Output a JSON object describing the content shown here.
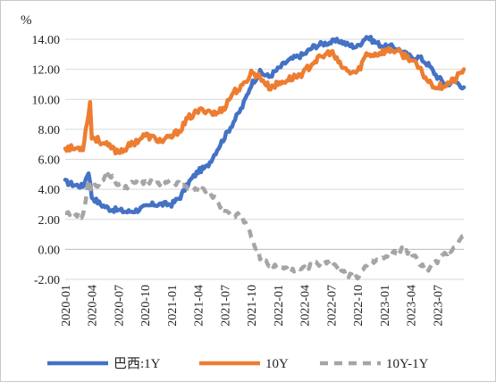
{
  "chart_data": {
    "type": "line",
    "unit_label": "%",
    "ylim": [
      -2,
      14
    ],
    "y_ticks": [
      "14.00",
      "12.00",
      "10.00",
      "8.00",
      "6.00",
      "4.00",
      "2.00",
      "0.00",
      "-2.00"
    ],
    "x_ticks": [
      "2020-01",
      "2020-04",
      "2020-07",
      "2020-10",
      "2021-01",
      "2021-04",
      "2021-07",
      "2021-10",
      "2022-01",
      "2022-04",
      "2022-07",
      "2022-10",
      "2023-01",
      "2023-04",
      "2023-07"
    ],
    "grid": "horizontal",
    "legend_position": "bottom",
    "x_range": [
      "2020-01",
      "2023-10"
    ],
    "series": [
      {
        "name": "巴西:1Y",
        "color": "#4472C4",
        "style": "solid",
        "points": [
          [
            "2020-01",
            4.5
          ],
          [
            "2020-02",
            4.3
          ],
          [
            "2020-03",
            4.2
          ],
          [
            "2020-03-20",
            5.2
          ],
          [
            "2020-04",
            3.5
          ],
          [
            "2020-05",
            3.0
          ],
          [
            "2020-06",
            2.7
          ],
          [
            "2020-07",
            2.6
          ],
          [
            "2020-08",
            2.5
          ],
          [
            "2020-09",
            2.6
          ],
          [
            "2020-10",
            2.8
          ],
          [
            "2020-11",
            3.0
          ],
          [
            "2020-12",
            3.0
          ],
          [
            "2021-01",
            3.0
          ],
          [
            "2021-02",
            3.5
          ],
          [
            "2021-03",
            4.5
          ],
          [
            "2021-04",
            5.2
          ],
          [
            "2021-05",
            5.5
          ],
          [
            "2021-06",
            6.5
          ],
          [
            "2021-07",
            7.5
          ],
          [
            "2021-08",
            8.5
          ],
          [
            "2021-09",
            9.5
          ],
          [
            "2021-10",
            11.0
          ],
          [
            "2021-11",
            11.8
          ],
          [
            "2021-12",
            11.5
          ],
          [
            "2022-01",
            12.0
          ],
          [
            "2022-02",
            12.5
          ],
          [
            "2022-03",
            12.8
          ],
          [
            "2022-04",
            13.0
          ],
          [
            "2022-05",
            13.5
          ],
          [
            "2022-06",
            13.7
          ],
          [
            "2022-07",
            13.8
          ],
          [
            "2022-08",
            13.9
          ],
          [
            "2022-09",
            13.6
          ],
          [
            "2022-10",
            13.5
          ],
          [
            "2022-11",
            14.2
          ],
          [
            "2022-12",
            13.8
          ],
          [
            "2023-01",
            13.5
          ],
          [
            "2023-02",
            13.5
          ],
          [
            "2023-03",
            13.2
          ],
          [
            "2023-04",
            12.8
          ],
          [
            "2023-05",
            12.8
          ],
          [
            "2023-06",
            12.3
          ],
          [
            "2023-07",
            11.5
          ],
          [
            "2023-08",
            11.0
          ],
          [
            "2023-09",
            11.2
          ],
          [
            "2023-10",
            10.8
          ]
        ]
      },
      {
        "name": "10Y",
        "color": "#ED7D31",
        "style": "solid",
        "points": [
          [
            "2020-01",
            6.8
          ],
          [
            "2020-02",
            6.7
          ],
          [
            "2020-03",
            6.8
          ],
          [
            "2020-03-15",
            8.5
          ],
          [
            "2020-03-25",
            9.8
          ],
          [
            "2020-04",
            7.5
          ],
          [
            "2020-05",
            7.2
          ],
          [
            "2020-06",
            6.8
          ],
          [
            "2020-07",
            6.5
          ],
          [
            "2020-08",
            6.8
          ],
          [
            "2020-09",
            7.2
          ],
          [
            "2020-10",
            7.6
          ],
          [
            "2020-11",
            7.4
          ],
          [
            "2020-12",
            7.2
          ],
          [
            "2021-01",
            7.5
          ],
          [
            "2021-02",
            8.0
          ],
          [
            "2021-03",
            8.8
          ],
          [
            "2021-04",
            9.2
          ],
          [
            "2021-05",
            9.3
          ],
          [
            "2021-06",
            9.0
          ],
          [
            "2021-07",
            9.5
          ],
          [
            "2021-08",
            10.5
          ],
          [
            "2021-09",
            10.8
          ],
          [
            "2021-10",
            11.8
          ],
          [
            "2021-11",
            11.5
          ],
          [
            "2021-12",
            10.8
          ],
          [
            "2022-01",
            11.0
          ],
          [
            "2022-02",
            11.3
          ],
          [
            "2022-03",
            11.5
          ],
          [
            "2022-04",
            11.8
          ],
          [
            "2022-05",
            12.5
          ],
          [
            "2022-06",
            12.8
          ],
          [
            "2022-07",
            13.2
          ],
          [
            "2022-08",
            12.3
          ],
          [
            "2022-09",
            11.8
          ],
          [
            "2022-10",
            11.8
          ],
          [
            "2022-11",
            13.0
          ],
          [
            "2022-12",
            13.0
          ],
          [
            "2023-01",
            13.2
          ],
          [
            "2023-02",
            13.3
          ],
          [
            "2023-03",
            13.0
          ],
          [
            "2023-04",
            12.7
          ],
          [
            "2023-05",
            12.0
          ],
          [
            "2023-06",
            11.2
          ],
          [
            "2023-07",
            10.8
          ],
          [
            "2023-08",
            11.0
          ],
          [
            "2023-09",
            11.3
          ],
          [
            "2023-10",
            12.0
          ]
        ]
      },
      {
        "name": "10Y-1Y",
        "color": "#A5A5A5",
        "style": "dashed",
        "points": [
          [
            "2020-01",
            2.3
          ],
          [
            "2020-02",
            2.4
          ],
          [
            "2020-03",
            2.2
          ],
          [
            "2020-03-20",
            4.5
          ],
          [
            "2020-04",
            4.0
          ],
          [
            "2020-05",
            4.5
          ],
          [
            "2020-06",
            5.0
          ],
          [
            "2020-07",
            4.3
          ],
          [
            "2020-08",
            4.2
          ],
          [
            "2020-09",
            4.5
          ],
          [
            "2020-10",
            4.5
          ],
          [
            "2020-11",
            4.4
          ],
          [
            "2020-12",
            4.3
          ],
          [
            "2021-01",
            4.5
          ],
          [
            "2021-02",
            4.3
          ],
          [
            "2021-03",
            4.0
          ],
          [
            "2021-04",
            3.9
          ],
          [
            "2021-05",
            4.0
          ],
          [
            "2021-06",
            3.3
          ],
          [
            "2021-07",
            2.5
          ],
          [
            "2021-08",
            2.3
          ],
          [
            "2021-09",
            2.2
          ],
          [
            "2021-10",
            0.8
          ],
          [
            "2021-11",
            -0.5
          ],
          [
            "2021-12",
            -1.0
          ],
          [
            "2022-01",
            -1.2
          ],
          [
            "2022-02",
            -1.3
          ],
          [
            "2022-03",
            -1.5
          ],
          [
            "2022-04",
            -1.3
          ],
          [
            "2022-05",
            -1.0
          ],
          [
            "2022-06",
            -0.9
          ],
          [
            "2022-07",
            -0.7
          ],
          [
            "2022-08",
            -1.3
          ],
          [
            "2022-09",
            -1.7
          ],
          [
            "2022-10",
            -1.8
          ],
          [
            "2022-11",
            -1.1
          ],
          [
            "2022-12",
            -0.8
          ],
          [
            "2023-01",
            -0.6
          ],
          [
            "2023-02",
            -0.3
          ],
          [
            "2023-03",
            0.0
          ],
          [
            "2023-04",
            -0.2
          ],
          [
            "2023-05",
            -0.9
          ],
          [
            "2023-06",
            -1.3
          ],
          [
            "2023-07",
            -0.8
          ],
          [
            "2023-08",
            -0.3
          ],
          [
            "2023-09",
            0.2
          ],
          [
            "2023-10",
            0.9
          ]
        ]
      }
    ]
  }
}
